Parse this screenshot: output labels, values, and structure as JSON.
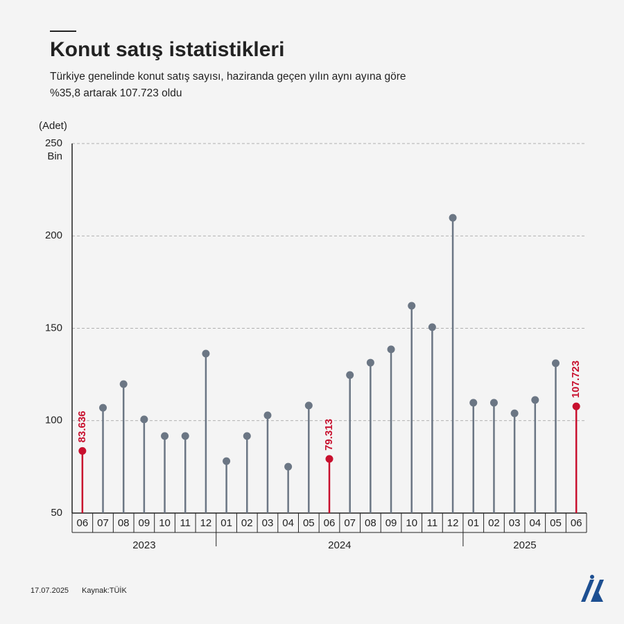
{
  "chart_data": {
    "type": "lollipop",
    "title": "Konut satış istatistikleri",
    "subtitle": "Türkiye genelinde konut satış sayısı, haziranda geçen yılın aynı ayına göre %35,8 artarak 107.723 oldu",
    "y_label": "(Adet)",
    "y_unit": "Bin",
    "categories": [
      "06",
      "07",
      "08",
      "09",
      "10",
      "11",
      "12",
      "01",
      "02",
      "03",
      "04",
      "05",
      "06",
      "07",
      "08",
      "09",
      "10",
      "11",
      "12",
      "01",
      "02",
      "03",
      "04",
      "05",
      "06"
    ],
    "year_groups": [
      {
        "label": "2023",
        "size": 7
      },
      {
        "label": "2024",
        "size": 12
      },
      {
        "label": "2025",
        "size": 6
      }
    ],
    "values": [
      83.636,
      107.0,
      119.8,
      100.7,
      91.7,
      91.7,
      136.3,
      78.1,
      91.7,
      102.9,
      75.1,
      108.2,
      79.313,
      124.7,
      131.4,
      138.6,
      162.2,
      150.6,
      209.8,
      109.7,
      109.7,
      104.0,
      111.2,
      131.1,
      107.723
    ],
    "color": "#6b7684",
    "highlight_color": "#c8102e",
    "highlighted": [
      0,
      12,
      24
    ],
    "ylim": [
      50,
      250
    ],
    "yticks": [
      50,
      100,
      150,
      200,
      250
    ],
    "grid": true
  },
  "footer": {
    "date": "17.07.2025",
    "source": "Kaynak:TÜİK"
  }
}
